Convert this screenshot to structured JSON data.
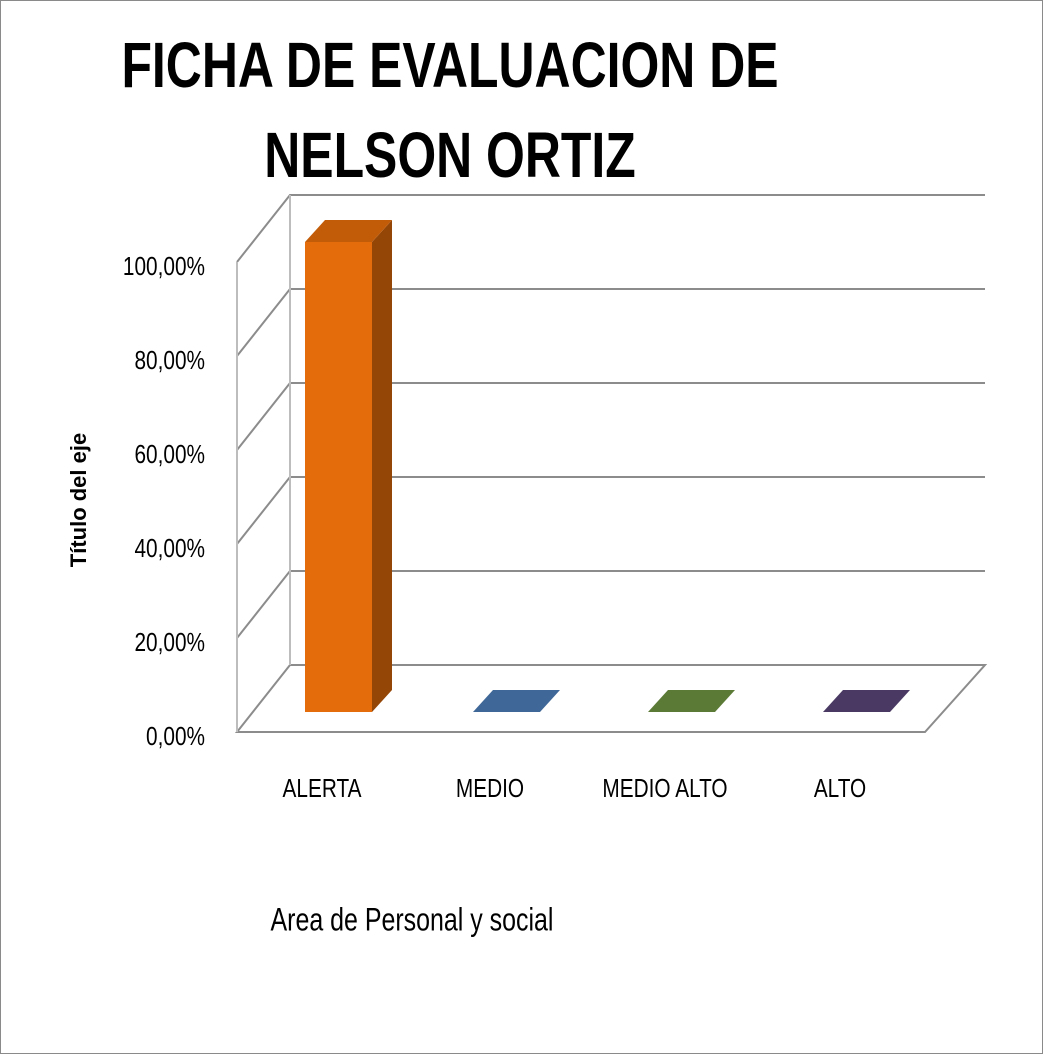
{
  "chart_data": {
    "type": "bar3d",
    "title": [
      "FICHA DE EVALUACION DE",
      "NELSON ORTIZ"
    ],
    "y_axis_label": "Título del eje",
    "x_axis_label": "Area de Personal y social",
    "categories": [
      "ALERTA",
      "MEDIO",
      "MEDIO ALTO",
      "ALTO"
    ],
    "values": [
      100,
      0,
      0,
      0
    ],
    "colors": [
      "#e46c0a",
      "#3f6797",
      "#5b7a35",
      "#4a3a63"
    ],
    "ylim": [
      0,
      100
    ],
    "yticks": [
      {
        "value": 0,
        "label": "0,00%"
      },
      {
        "value": 20,
        "label": "20,00%"
      },
      {
        "value": 40,
        "label": "40,00%"
      },
      {
        "value": 60,
        "label": "60,00%"
      },
      {
        "value": 80,
        "label": "80,00%"
      },
      {
        "value": 100,
        "label": "100,00%"
      }
    ],
    "grid": true
  }
}
